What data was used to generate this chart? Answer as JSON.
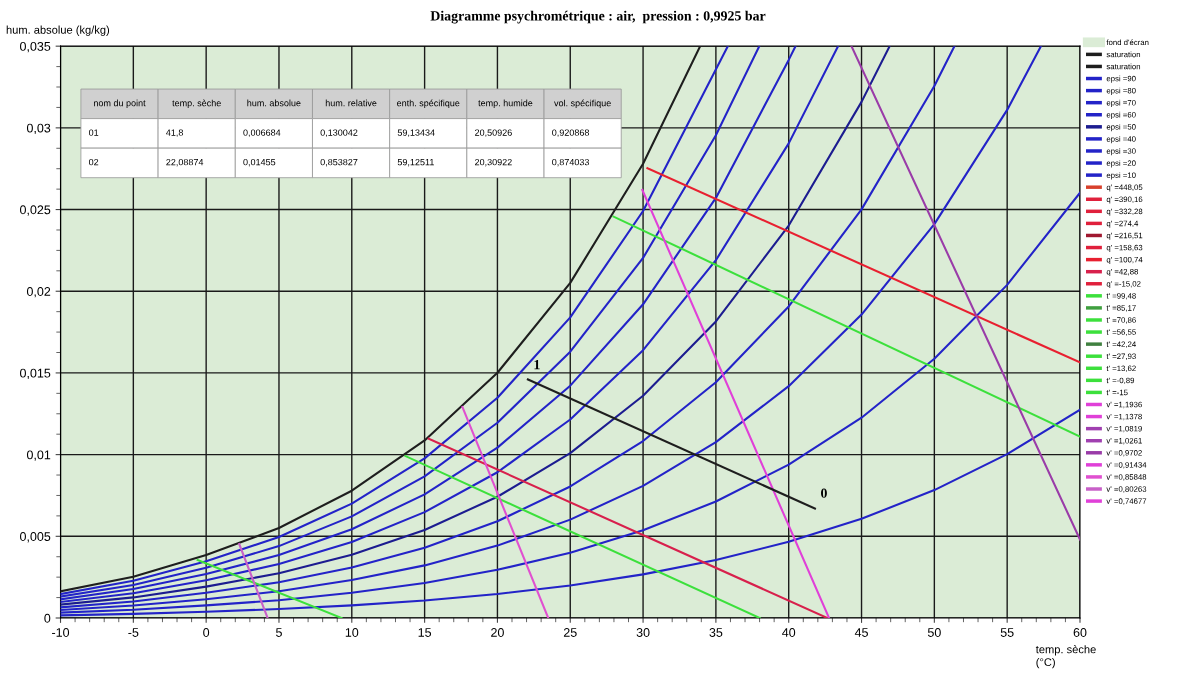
{
  "chart_data": {
    "type": "line",
    "title": "Diagramme psychrométrique : air,  pression : 0,9925 bar",
    "xlabel": "temp. sèche\n(°C)",
    "ylabel": "hum. absolue (kg/kg)",
    "xlim": [
      -10,
      60
    ],
    "ylim": [
      0,
      0.035
    ],
    "xticks": [
      -10,
      -5,
      0,
      5,
      10,
      15,
      20,
      25,
      30,
      35,
      40,
      45,
      50,
      55,
      60,
      {
        "value": -9,
        "label": null
      },
      {
        "value": -8,
        "label": null
      },
      {
        "value": -7,
        "label": null
      },
      {
        "value": -6,
        "label": null
      },
      {
        "value": -4,
        "label": null
      },
      {
        "value": -3,
        "label": null
      },
      {
        "value": -2,
        "label": null
      },
      {
        "value": -1,
        "label": null
      },
      {
        "value": 1,
        "label": null
      },
      {
        "value": 2,
        "label": null
      },
      {
        "value": 3,
        "label": null
      },
      {
        "value": 4,
        "label": null
      },
      {
        "value": 6,
        "label": null
      },
      {
        "value": 7,
        "label": null
      },
      {
        "value": 8,
        "label": null
      },
      {
        "value": 9,
        "label": null
      },
      {
        "value": 11,
        "label": null
      },
      {
        "value": 12,
        "label": null
      },
      {
        "value": 13,
        "label": null
      },
      {
        "value": 14,
        "label": null
      },
      {
        "value": 16,
        "label": null
      },
      {
        "value": 17,
        "label": null
      },
      {
        "value": 18,
        "label": null
      },
      {
        "value": 19,
        "label": null
      },
      {
        "value": 21,
        "label": null
      },
      {
        "value": 22,
        "label": null
      },
      {
        "value": 23,
        "label": null
      },
      {
        "value": 24,
        "label": null
      },
      {
        "value": 26,
        "label": null
      },
      {
        "value": 27,
        "label": null
      },
      {
        "value": 28,
        "label": null
      },
      {
        "value": 29,
        "label": null
      },
      {
        "value": 31,
        "label": null
      },
      {
        "value": 32,
        "label": null
      },
      {
        "value": 33,
        "label": null
      },
      {
        "value": 34,
        "label": null
      },
      {
        "value": 36,
        "label": null
      },
      {
        "value": 37,
        "label": null
      },
      {
        "value": 38,
        "label": null
      },
      {
        "value": 39,
        "label": null
      },
      {
        "value": 41,
        "label": null
      },
      {
        "value": 42,
        "label": null
      },
      {
        "value": 43,
        "label": null
      },
      {
        "value": 44,
        "label": null
      },
      {
        "value": 46,
        "label": null
      },
      {
        "value": 47,
        "label": null
      },
      {
        "value": 48,
        "label": null
      },
      {
        "value": 49,
        "label": null
      },
      {
        "value": 51,
        "label": null
      },
      {
        "value": 52,
        "label": null
      },
      {
        "value": 53,
        "label": null
      },
      {
        "value": 54,
        "label": null
      },
      {
        "value": 56,
        "label": null
      },
      {
        "value": 57,
        "label": null
      },
      {
        "value": 58,
        "label": null
      },
      {
        "value": 59,
        "label": null
      }
    ],
    "yticks": [
      0,
      {
        "value": 0.005,
        "label": "0,005"
      },
      {
        "value": 0.01,
        "label": "0,01"
      },
      {
        "value": 0.015,
        "label": "0,015"
      },
      {
        "value": 0.02,
        "label": "0,02"
      },
      {
        "value": 0.025,
        "label": "0,025"
      },
      {
        "value": 0.03,
        "label": "0,03"
      },
      {
        "value": 0.035,
        "label": "0,035"
      },
      {
        "value": 0.00125,
        "label": null
      },
      {
        "value": 0.0025,
        "label": null
      },
      {
        "value": 0.00375,
        "label": null
      },
      {
        "value": 0.00625,
        "label": null
      },
      {
        "value": 0.0075,
        "label": null
      },
      {
        "value": 0.00875,
        "label": null
      },
      {
        "value": 0.01125,
        "label": null
      },
      {
        "value": 0.0125,
        "label": null
      },
      {
        "value": 0.01375,
        "label": null
      },
      {
        "value": 0.01625,
        "label": null
      },
      {
        "value": 0.0175,
        "label": null
      },
      {
        "value": 0.01875,
        "label": null
      },
      {
        "value": 0.02125,
        "label": null
      },
      {
        "value": 0.0225,
        "label": null
      },
      {
        "value": 0.02375,
        "label": null
      },
      {
        "value": 0.02625,
        "label": null
      },
      {
        "value": 0.0275,
        "label": null
      },
      {
        "value": 0.02875,
        "label": null
      },
      {
        "value": 0.03125,
        "label": null
      },
      {
        "value": 0.0325,
        "label": null
      },
      {
        "value": 0.03375,
        "label": null
      }
    ],
    "grid": true,
    "legend": "right",
    "marker": "none",
    "line_style": "solid",
    "bands": [
      {
        "axis": "y",
        "from": 0,
        "to": 0.035,
        "label": "fond d'écran",
        "color": "#dbecd6"
      }
    ],
    "series": [
      {
        "name": "saturation",
        "color": "#1e1e1e",
        "x": [
          -10,
          -5,
          0,
          5,
          10,
          15,
          20,
          25,
          30,
          33.92
        ],
        "values": [
          0.00163,
          0.00253,
          0.00385,
          0.00551,
          0.00779,
          0.01087,
          0.01501,
          0.02051,
          0.0278,
          0.035
        ]
      },
      {
        "name": "saturation",
        "color": "#1e1e1e"
      },
      {
        "name": "epsi =90",
        "color": "#2323c8",
        "x": [
          -10,
          -5,
          0,
          5,
          10,
          15,
          20,
          25,
          30,
          35.82
        ],
        "values": [
          0.00147,
          0.00228,
          0.00347,
          0.00496,
          0.007,
          0.00977,
          0.01348,
          0.0184,
          0.02491,
          0.035
        ]
      },
      {
        "name": "epsi =80",
        "color": "#2323c8",
        "x": [
          -10,
          -5,
          0,
          5,
          10,
          15,
          20,
          25,
          30,
          35,
          37.98
        ],
        "values": [
          0.00131,
          0.00202,
          0.00308,
          0.0044,
          0.00622,
          0.00867,
          0.01195,
          0.0163,
          0.02204,
          0.02955,
          0.035
        ]
      },
      {
        "name": "epsi =70",
        "color": "#2323c8",
        "x": [
          -10,
          -5,
          0,
          5,
          10,
          15,
          20,
          25,
          30,
          35,
          40,
          40.47
        ],
        "values": [
          0.00114,
          0.00177,
          0.00269,
          0.00385,
          0.00543,
          0.00757,
          0.01043,
          0.01422,
          0.0192,
          0.02571,
          0.03416,
          0.035
        ]
      },
      {
        "name": "epsi =60",
        "color": "#2323c8",
        "x": [
          -10,
          -5,
          0,
          5,
          10,
          15,
          20,
          25,
          30,
          35,
          40,
          43.39
        ],
        "values": [
          0.00098,
          0.00152,
          0.00231,
          0.0033,
          0.00465,
          0.00648,
          0.00892,
          0.01215,
          0.01639,
          0.0219,
          0.02905,
          0.035
        ]
      },
      {
        "name": "epsi =50",
        "color": "#1c1c90",
        "x": [
          -10,
          -5,
          0,
          5,
          10,
          15,
          20,
          25,
          30,
          35,
          40,
          45,
          46.93
        ],
        "values": [
          0.00082,
          0.00126,
          0.00192,
          0.00274,
          0.00387,
          0.00539,
          0.00742,
          0.01009,
          0.0136,
          0.01815,
          0.02402,
          0.03159,
          0.035
        ]
      },
      {
        "name": "epsi =40",
        "color": "#2323c8",
        "x": [
          -10,
          -5,
          0,
          5,
          10,
          15,
          20,
          25,
          30,
          35,
          40,
          45,
          50,
          51.38
        ],
        "values": [
          0.00065,
          0.00101,
          0.00154,
          0.00219,
          0.00309,
          0.0043,
          0.00592,
          0.00805,
          0.01083,
          0.01443,
          0.01907,
          0.02501,
          0.03256,
          0.035
        ]
      },
      {
        "name": "epsi =30",
        "color": "#2323c8",
        "x": [
          -10,
          -5,
          0,
          5,
          10,
          15,
          20,
          25,
          30,
          35,
          40,
          45,
          50,
          55,
          57.32
        ],
        "values": [
          0.00049,
          0.00076,
          0.00115,
          0.00164,
          0.00232,
          0.00322,
          0.00443,
          0.00602,
          0.00809,
          0.01076,
          0.01419,
          0.01857,
          0.02411,
          0.0311,
          0.035
        ]
      },
      {
        "name": "epsi =20",
        "color": "#2323c8",
        "x": [
          -10,
          -5,
          0,
          5,
          10,
          15,
          20,
          25,
          30,
          35,
          40,
          45,
          50,
          55,
          60
        ],
        "values": [
          0.00033,
          0.0005,
          0.00077,
          0.00109,
          0.00154,
          0.00214,
          0.00295,
          0.004,
          0.00537,
          0.00713,
          0.00939,
          0.01226,
          0.01587,
          0.02039,
          0.02603
        ]
      },
      {
        "name": "epsi =10",
        "color": "#2323c8",
        "x": [
          -10,
          -5,
          0,
          5,
          10,
          15,
          20,
          25,
          30,
          35,
          40,
          45,
          50,
          55,
          60
        ],
        "values": [
          0.00016,
          0.00025,
          0.00038,
          0.00055,
          0.00077,
          0.00107,
          0.00147,
          0.00199,
          0.00267,
          0.00355,
          0.00466,
          0.00607,
          0.00783,
          0.01003,
          0.01275
        ]
      },
      {
        "name": "q' =448,05",
        "color": "#d8402c"
      },
      {
        "name": "q' =390,16",
        "color": "#e0203c"
      },
      {
        "name": "q' =332,28",
        "color": "#e0203c"
      },
      {
        "name": "q' =274,4",
        "color": "#e0203c"
      },
      {
        "name": "q' =216,51",
        "color": "#a01830"
      },
      {
        "name": "q' =158,63",
        "color": "#e0203c"
      },
      {
        "name": "q' =100,74",
        "color": "#e82030",
        "x": [
          30.3,
          60
        ],
        "values": [
          0.02753,
          0.01564
        ]
      },
      {
        "name": "q' =42,88",
        "color": "#d8204c",
        "x": [
          15.28,
          42.65
        ],
        "values": [
          0.01098,
          0
        ]
      },
      {
        "name": "q' =-15,02",
        "color": "#e0203c"
      },
      {
        "name": "t' =99,48",
        "color": "#3ce03c"
      },
      {
        "name": "t' =85,17",
        "color": "#40a040"
      },
      {
        "name": "t' =70,86",
        "color": "#3ce03c"
      },
      {
        "name": "t' =56,55",
        "color": "#3ce03c"
      },
      {
        "name": "t' =42,24",
        "color": "#408040"
      },
      {
        "name": "t' =27,93",
        "color": "#3ce03c",
        "x": [
          27.97,
          60
        ],
        "values": [
          0.02457,
          0.0111
        ]
      },
      {
        "name": "t' =13,62",
        "color": "#3ce03c",
        "x": [
          13.69,
          38.01
        ],
        "values": [
          0.00991,
          0
        ]
      },
      {
        "name": "t' =-0,89",
        "color": "#3ce03c",
        "x": [
          -0.59,
          9.3
        ],
        "values": [
          0.00355,
          0
        ]
      },
      {
        "name": "t' =-15",
        "color": "#3ce03c"
      },
      {
        "name": "v' =1,1936",
        "color": "#e040d8"
      },
      {
        "name": "v' =1,1378",
        "color": "#e040d8"
      },
      {
        "name": "v' =1,0819",
        "color": "#a040b0"
      },
      {
        "name": "v' =1,0261",
        "color": "#a040b0"
      },
      {
        "name": "v' =0,9702",
        "color": "#9a3ca8",
        "x": [
          44.31,
          60
        ],
        "values": [
          0.035,
          0.0048
        ]
      },
      {
        "name": "v' =0,91434",
        "color": "#e040d8",
        "x": [
          29.95,
          42.77
        ],
        "values": [
          0.0262,
          0
        ]
      },
      {
        "name": "v' =0,85848",
        "color": "#e050d0",
        "x": [
          17.6,
          23.49
        ],
        "values": [
          0.01291,
          0
        ]
      },
      {
        "name": "v' =0,80263",
        "color": "#c860c8",
        "x": [
          2.27,
          4.22
        ],
        "values": [
          0.00453,
          0
        ]
      },
      {
        "name": "v' =0,74677",
        "color": "#e040d8"
      },
      {
        "color": "#1e1e1e",
        "x": [
          41.8,
          22.09
        ],
        "values": [
          0.0067,
          0.0146
        ]
      }
    ],
    "annotations": [
      "nom du point",
      "temp. sèche",
      "hum. absolue",
      "hum. relative",
      "enth. spécifique",
      "temp. humide",
      "vol. spécifique",
      "01",
      "41,8",
      "0,006684",
      "0,130042",
      "59,13434",
      "20,50926",
      "0,920868",
      "02",
      "22,08874",
      "0,01455",
      "0,853827",
      "59,12511",
      "20,30922",
      "0,874033",
      {
        "text": "0",
        "x": 41.8,
        "y": 0.006684
      },
      {
        "text": "1",
        "x": 22.08874,
        "y": 0.01455
      }
    ]
  }
}
